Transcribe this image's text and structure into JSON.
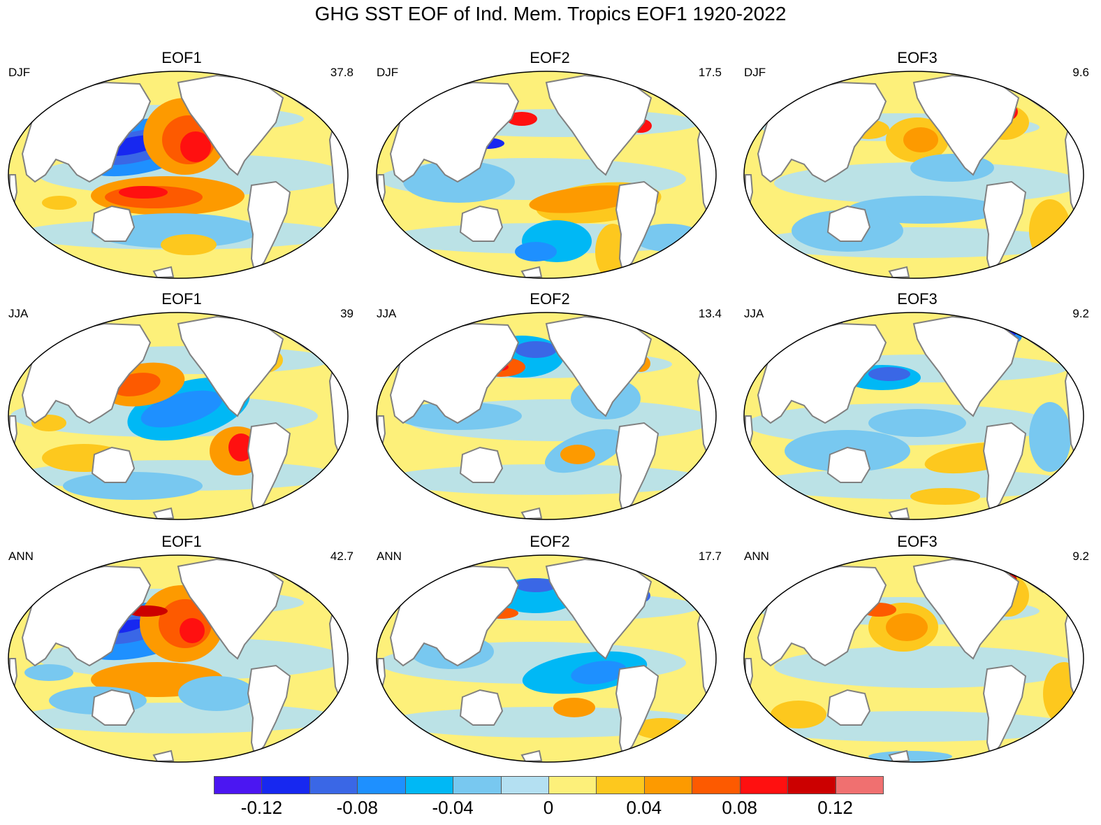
{
  "title": "GHG SST EOF of Ind. Mem. Tropics EOF1 1920-2022",
  "colorbar": {
    "colors": [
      "#4b16f2",
      "#1728f0",
      "#3a67e6",
      "#1e90ff",
      "#00b8f5",
      "#78c8f0",
      "#b4e0f2",
      "#fdf07a",
      "#fdc81e",
      "#fd9a00",
      "#fd5a00",
      "#ff1010",
      "#cc0000",
      "#f07070"
    ],
    "tick_labels": [
      "-0.12",
      "-0.08",
      "-0.04",
      "0",
      "0.04",
      "0.08",
      "0.12"
    ]
  },
  "panels": [
    {
      "eof": "EOF1",
      "season": "DJF",
      "variance": "37.8"
    },
    {
      "eof": "EOF2",
      "season": "DJF",
      "variance": "17.5"
    },
    {
      "eof": "EOF3",
      "season": "DJF",
      "variance": "9.6"
    },
    {
      "eof": "EOF1",
      "season": "JJA",
      "variance": "39"
    },
    {
      "eof": "EOF2",
      "season": "JJA",
      "variance": "13.4"
    },
    {
      "eof": "EOF3",
      "season": "JJA",
      "variance": "9.2"
    },
    {
      "eof": "EOF1",
      "season": "ANN",
      "variance": "42.7"
    },
    {
      "eof": "EOF2",
      "season": "ANN",
      "variance": "17.7"
    },
    {
      "eof": "EOF3",
      "season": "ANN",
      "variance": "9.2"
    }
  ]
}
